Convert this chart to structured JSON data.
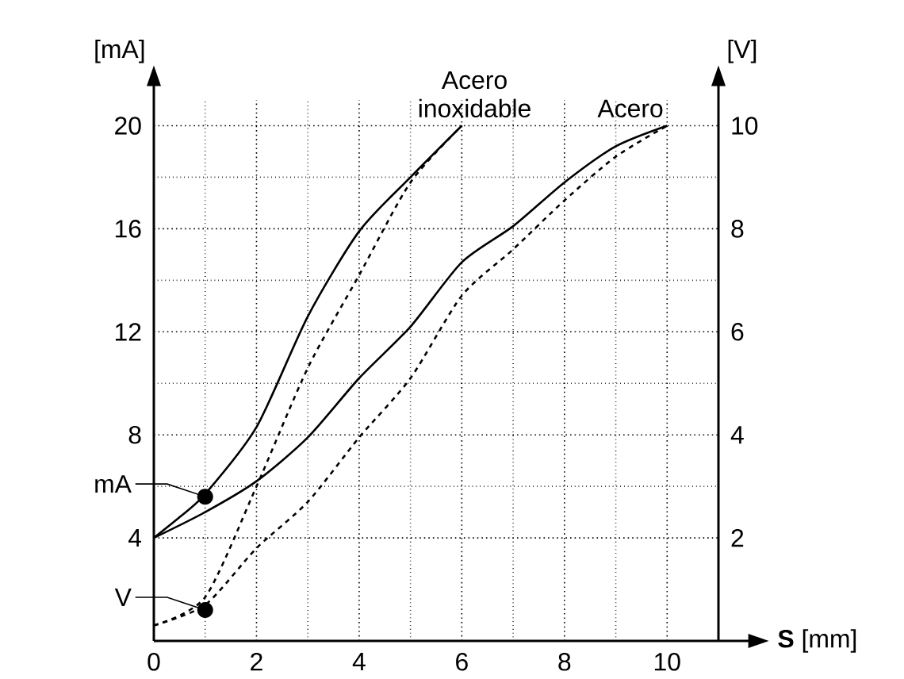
{
  "chart_data": {
    "type": "line",
    "xlabel": "**S** [mm]",
    "ylabel": "[mA]",
    "y2label": "[V]",
    "xlim": [
      0,
      11
    ],
    "xticks": [
      0,
      2,
      4,
      6,
      8,
      10
    ],
    "ylim": [
      0,
      21
    ],
    "yticks": [
      4,
      8,
      12,
      16,
      20
    ],
    "y2lim": [
      0,
      10.5
    ],
    "y2ticks": [
      2,
      4,
      6,
      8,
      10
    ],
    "grid": true,
    "marker": "none",
    "series": [
      {
        "name": "Acero inoxidable",
        "color": "#000000",
        "line_style": "solid",
        "x": [
          0,
          0.5,
          1,
          2,
          3,
          4,
          5,
          6
        ],
        "values": [
          4,
          4.8,
          5.7,
          8.3,
          12.6,
          15.9,
          18,
          20
        ]
      },
      {
        "color": "#000000",
        "line_style": "dashed",
        "axis": "y2",
        "x": [
          0,
          1,
          2,
          3,
          4,
          5,
          6
        ],
        "values": [
          0.3,
          0.85,
          3.0,
          5.3,
          7.1,
          8.9,
          10
        ]
      },
      {
        "name": "Acero",
        "color": "#000000",
        "line_style": "solid",
        "x": [
          0,
          1,
          2,
          3,
          4,
          5,
          6,
          7,
          8,
          9,
          10
        ],
        "values": [
          4,
          5.0,
          6.2,
          7.9,
          10.2,
          12.2,
          14.7,
          16.1,
          17.8,
          19.2,
          20
        ]
      },
      {
        "color": "#000000",
        "line_style": "dashed",
        "axis": "y2",
        "x": [
          0,
          1,
          2,
          3,
          4,
          5,
          6,
          7,
          8,
          9,
          10
        ],
        "values": [
          0.3,
          0.7,
          1.8,
          2.7,
          3.95,
          5.1,
          6.7,
          7.6,
          8.55,
          9.4,
          10
        ]
      }
    ],
    "annotations": [
      {
        "text": "mA",
        "x": 1,
        "y": 5.6
      },
      {
        "text": "V",
        "x": 1,
        "y": 1.2
      }
    ]
  }
}
